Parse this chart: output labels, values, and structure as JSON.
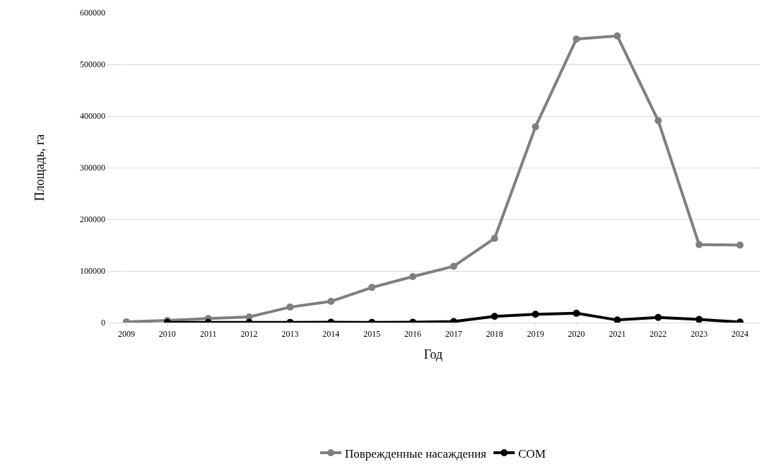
{
  "chart_data": {
    "type": "line",
    "xlabel": "Год",
    "ylabel": "Площадь, га",
    "categories": [
      "2009",
      "2010",
      "2011",
      "2012",
      "2013",
      "2014",
      "2015",
      "2016",
      "2017",
      "2018",
      "2019",
      "2020",
      "2021",
      "2022",
      "2023",
      "2024"
    ],
    "series": [
      {
        "name": "Поврежденные насаждения",
        "color": "#7f7f7f",
        "values": [
          1500,
          4000,
          8000,
          11000,
          30000,
          41000,
          68000,
          89000,
          109000,
          163000,
          379000,
          549000,
          555000,
          391000,
          151000,
          150000
        ]
      },
      {
        "name": "СОМ",
        "color": "#000000",
        "values": [
          null,
          300,
          200,
          200,
          500,
          700,
          400,
          600,
          2000,
          12000,
          16000,
          18000,
          5000,
          10000,
          6000,
          1000
        ]
      }
    ],
    "ylim": [
      0,
      600000
    ],
    "yticks": [
      0,
      100000,
      200000,
      300000,
      400000,
      500000,
      600000
    ],
    "grid": "y",
    "legend": "bottom",
    "marker": "circle",
    "line_style": "solid"
  }
}
